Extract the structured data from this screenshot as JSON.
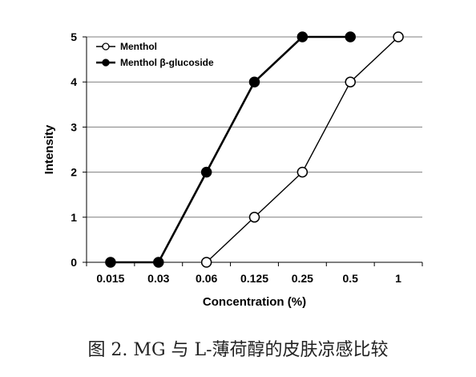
{
  "chart_data": {
    "type": "line",
    "categories": [
      "0.015",
      "0.03",
      "0.06",
      "0.125",
      "0.25",
      "0.5",
      "1"
    ],
    "series": [
      {
        "name": "Menthol",
        "marker": "open-circle",
        "values": [
          null,
          null,
          0,
          1,
          2,
          4,
          5
        ]
      },
      {
        "name": "Menthol β-glucoside",
        "marker": "filled-circle",
        "values": [
          0,
          0,
          2,
          4,
          5,
          5,
          null
        ]
      }
    ],
    "xlabel": "Concentration (%)",
    "ylabel": "Intensity",
    "ylim": [
      0,
      5
    ],
    "yticks": [
      0,
      1,
      2,
      3,
      4,
      5
    ],
    "grid": "horizontal",
    "legend_position": "top-left",
    "colors": {
      "line": "#000000",
      "grid": "#7f7f7f",
      "open_marker_fill": "#ffffff"
    }
  },
  "caption": "图 2. MG 与 L-薄荷醇的皮肤凉感比较"
}
